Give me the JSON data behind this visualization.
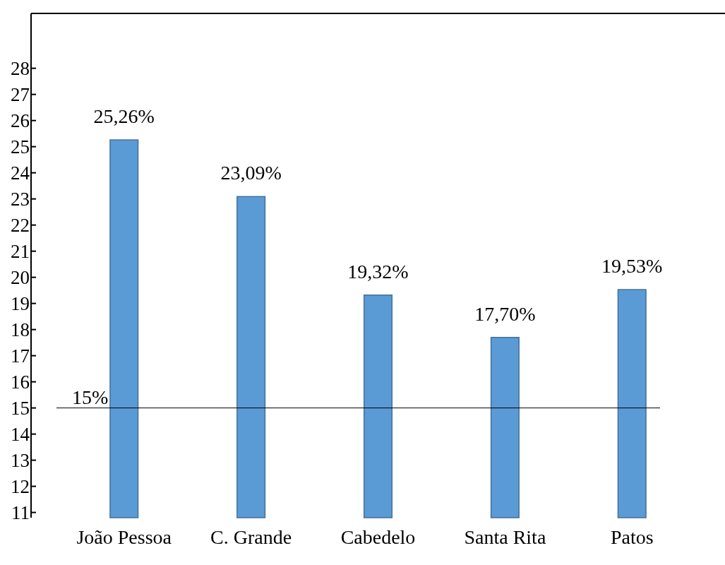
{
  "chart_data": {
    "type": "bar",
    "categories": [
      "João Pessoa",
      "C. Grande",
      "Cabedelo",
      "Santa Rita",
      "Patos"
    ],
    "values": [
      25.26,
      23.09,
      19.32,
      17.7,
      19.53
    ],
    "color": "#5b9bd5",
    "value_labels": [
      "25,26%",
      "23,09%",
      "19,32%",
      "17,70%",
      "19,53%"
    ],
    "ylim": [
      10.8,
      30.1
    ],
    "yticks": [
      11,
      12,
      13,
      14,
      15,
      16,
      17,
      18,
      19,
      20,
      21,
      22,
      23,
      24,
      25,
      26,
      27,
      28
    ],
    "ref_lines": [
      {
        "axis": "y",
        "value": 15,
        "label": "15%",
        "color": "#000000"
      }
    ]
  }
}
